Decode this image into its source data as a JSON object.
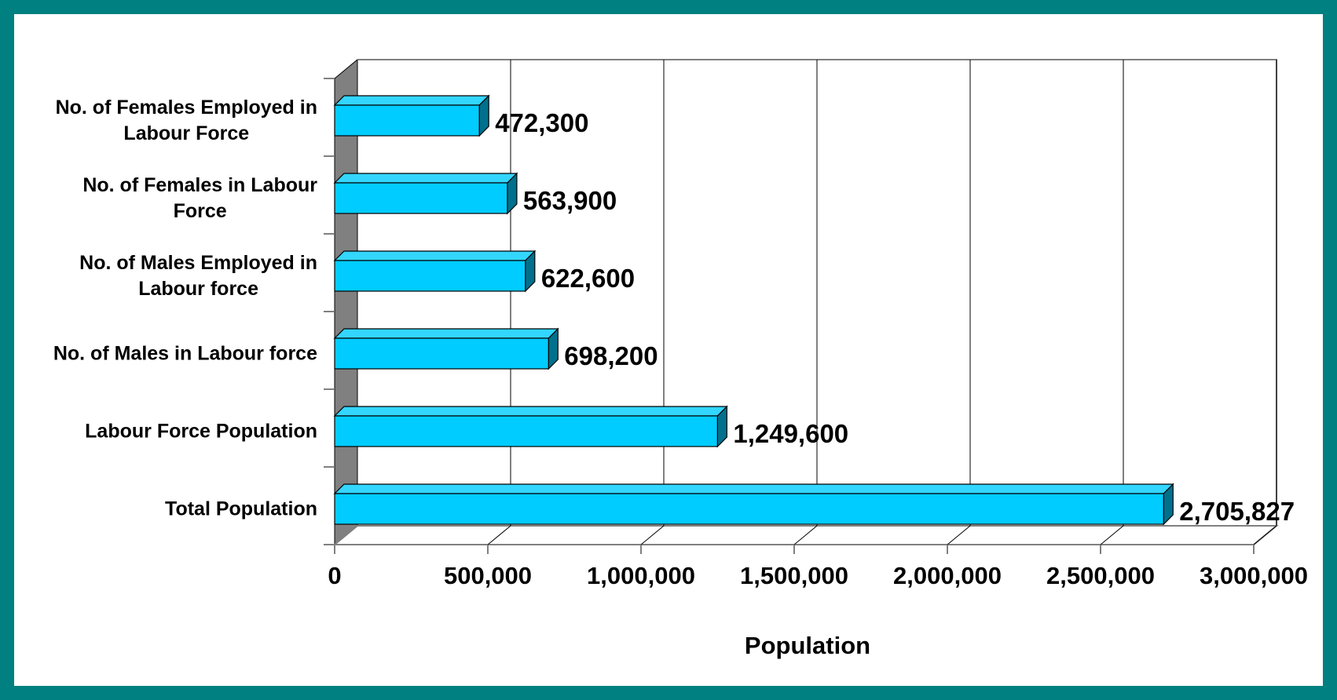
{
  "chart_data": {
    "type": "bar",
    "orientation": "horizontal",
    "style": "3d",
    "title": "",
    "categories": [
      [
        "Total Population"
      ],
      [
        "Labour Force Population"
      ],
      [
        "No. of Males in Labour force"
      ],
      [
        "No. of Males Employed in",
        "Labour force"
      ],
      [
        "No. of Females in Labour",
        "Force"
      ],
      [
        "No. of Females Employed in",
        "Labour Force"
      ]
    ],
    "values": [
      2705827,
      1249600,
      698200,
      622600,
      563900,
      472300
    ],
    "value_labels": [
      "2,705,827",
      "1,249,600",
      "698,200",
      "622,600",
      "563,900",
      "472,300"
    ],
    "xlabel": "Population",
    "ylabel": "",
    "xlim": [
      0,
      3000000
    ],
    "xticks": [
      0,
      500000,
      1000000,
      1500000,
      2000000,
      2500000,
      3000000
    ],
    "xtick_labels": [
      "0",
      "500,000",
      "1,000,000",
      "1,500,000",
      "2,000,000",
      "2,500,000",
      "3,000,000"
    ],
    "grid": true,
    "legend": "none",
    "colors": {
      "bar_front": "#00ccff",
      "bar_top": "#33d6ff",
      "bar_side": "#00708c",
      "side_wall": "#808080",
      "gridline": "#000000",
      "frame": "#008080",
      "background": "#ffffff"
    }
  }
}
